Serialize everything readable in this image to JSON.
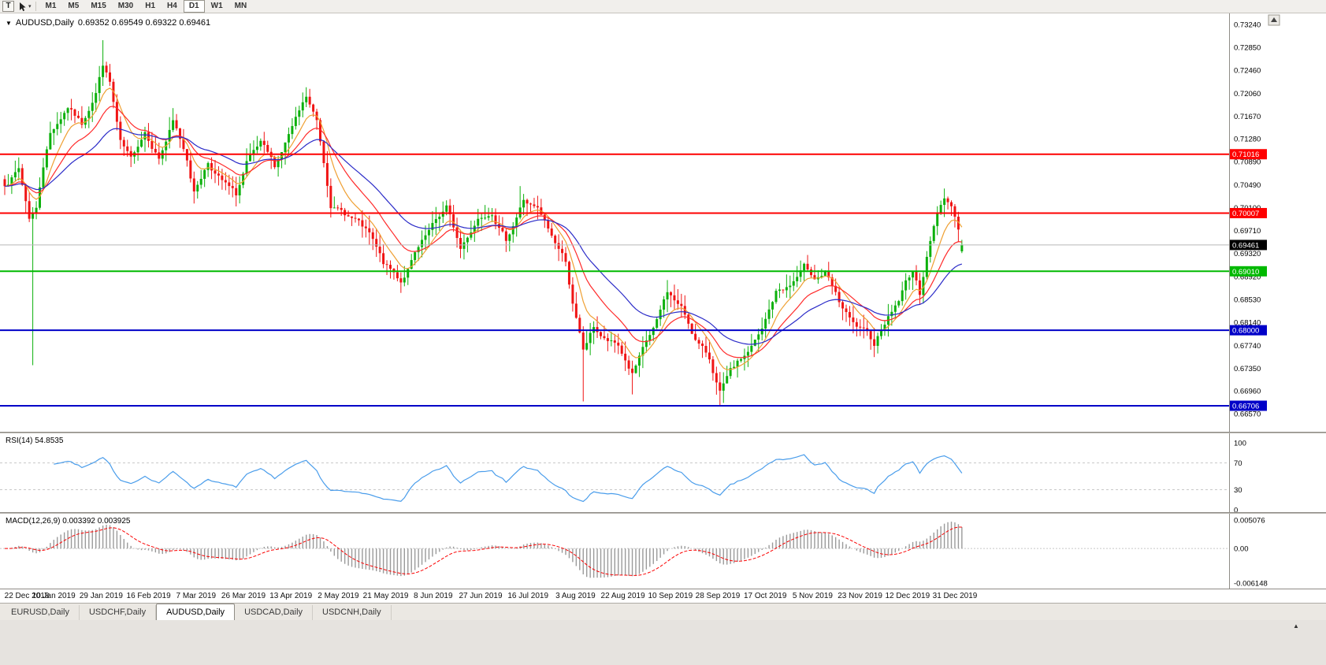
{
  "toolbar": {
    "t_button": "T",
    "cursor_tool": "cursor-select",
    "timeframes": [
      "M1",
      "M5",
      "M15",
      "M30",
      "H1",
      "H4",
      "D1",
      "W1",
      "MN"
    ],
    "active_timeframe": "D1"
  },
  "chart": {
    "symbol_title": "AUDUSD,Daily",
    "ohlc": "0.69352 0.69549 0.69322 0.69461",
    "y_axis_labels": [
      "0.73240",
      "0.72850",
      "0.72460",
      "0.72060",
      "0.71670",
      "0.71280",
      "0.70890",
      "0.70490",
      "0.70100",
      "0.69710",
      "0.69320",
      "0.68920",
      "0.68530",
      "0.68140",
      "0.67740",
      "0.67350",
      "0.66960",
      "0.66570"
    ],
    "price_lines": [
      {
        "value": 0.71016,
        "label": "0.71016",
        "color": "#FE0000",
        "type": "resistance"
      },
      {
        "value": 0.70007,
        "label": "0.70007",
        "color": "#FE0000",
        "type": "resistance"
      },
      {
        "value": 0.6901,
        "label": "0.69010",
        "color": "#00B900",
        "type": "support"
      },
      {
        "value": 0.68,
        "label": "0.68000",
        "color": "#0000C8",
        "type": "support"
      },
      {
        "value": 0.66706,
        "label": "0.66706",
        "color": "#0000C8",
        "type": "support"
      }
    ],
    "current_price": {
      "value": 0.69461,
      "label": "0.69461",
      "line_color": "#B8B8B8",
      "badge_color": "#000000"
    }
  },
  "rsi_panel": {
    "label": "RSI(14) 54.8535",
    "levels": [
      "100",
      "70",
      "30",
      "0"
    ],
    "level_values": [
      100,
      70,
      30,
      0
    ],
    "line_color": "#4A9DEB"
  },
  "macd_panel": {
    "label": "MACD(12,26,9) 0.003392 0.003925",
    "levels": [
      "0.005076",
      "0.00",
      "-0.006148"
    ],
    "level_values": [
      0.005076,
      0,
      -0.006148
    ],
    "hist_color": "#9A9A9A",
    "signal_color": "#FB0000"
  },
  "time_axis": [
    "22 Dec 2018",
    "10 Jan 2019",
    "29 Jan 2019",
    "16 Feb 2019",
    "7 Mar 2019",
    "26 Mar 2019",
    "13 Apr 2019",
    "2 May 2019",
    "21 May 2019",
    "8 Jun 2019",
    "27 Jun 2019",
    "16 Jul 2019",
    "3 Aug 2019",
    "22 Aug 2019",
    "10 Sep 2019",
    "28 Sep 2019",
    "17 Oct 2019",
    "5 Nov 2019",
    "23 Nov 2019",
    "12 Dec 2019",
    "31 Dec 2019"
  ],
  "tabs": {
    "items": [
      "EURUSD,Daily",
      "USDCHF,Daily",
      "AUDUSD,Daily",
      "USDCAD,Daily",
      "USDCNH,Daily"
    ],
    "active": "AUDUSD,Daily"
  },
  "chart_data": {
    "type": "candlestick",
    "symbol": "AUDUSD",
    "timeframe": "Daily",
    "title": "AUDUSD,Daily",
    "last_ohlc": {
      "open": 0.69352,
      "high": 0.69549,
      "low": 0.69322,
      "close": 0.69461
    },
    "y_range": [
      0.6626,
      0.73429
    ],
    "x_range": [
      "22 Dec 2018",
      "31 Dec 2019"
    ],
    "up_color": "#0CB00C",
    "down_color": "#F01414",
    "candles": {
      "count": 274,
      "seed": 7,
      "noise": 0.0012,
      "wick": 0.0022,
      "anchors": [
        [
          0,
          0.7052
        ],
        [
          4,
          0.7078
        ],
        [
          7,
          0.6995
        ],
        [
          9,
          0.701
        ],
        [
          11,
          0.7085
        ],
        [
          13,
          0.714
        ],
        [
          18,
          0.7188
        ],
        [
          22,
          0.7155
        ],
        [
          26,
          0.7215
        ],
        [
          28,
          0.7262
        ],
        [
          30,
          0.7228
        ],
        [
          33,
          0.712
        ],
        [
          36,
          0.7085
        ],
        [
          40,
          0.714
        ],
        [
          44,
          0.71
        ],
        [
          48,
          0.7158
        ],
        [
          52,
          0.7095
        ],
        [
          54,
          0.704
        ],
        [
          58,
          0.7092
        ],
        [
          62,
          0.7058
        ],
        [
          66,
          0.7028
        ],
        [
          69,
          0.7082
        ],
        [
          73,
          0.7108
        ],
        [
          77,
          0.7068
        ],
        [
          81,
          0.7128
        ],
        [
          86,
          0.7188
        ],
        [
          89,
          0.7148
        ],
        [
          93,
          0.7015
        ],
        [
          96,
          0.7002
        ],
        [
          100,
          0.6988
        ],
        [
          104,
          0.6958
        ],
        [
          108,
          0.6905
        ],
        [
          113,
          0.6878
        ],
        [
          117,
          0.6925
        ],
        [
          121,
          0.6958
        ],
        [
          126,
          0.7002
        ],
        [
          130,
          0.6932
        ],
        [
          135,
          0.6992
        ],
        [
          139,
          0.7012
        ],
        [
          143,
          0.6962
        ],
        [
          148,
          0.703
        ],
        [
          152,
          0.7008
        ],
        [
          156,
          0.6958
        ],
        [
          160,
          0.6918
        ],
        [
          162,
          0.6845
        ],
        [
          165,
          0.6762
        ],
        [
          168,
          0.6802
        ],
        [
          171,
          0.6782
        ],
        [
          175,
          0.6768
        ],
        [
          179,
          0.6722
        ],
        [
          183,
          0.6772
        ],
        [
          186,
          0.6806
        ],
        [
          189,
          0.6858
        ],
        [
          193,
          0.6832
        ],
        [
          197,
          0.6782
        ],
        [
          201,
          0.6748
        ],
        [
          204,
          0.6692
        ],
        [
          207,
          0.6722
        ],
        [
          211,
          0.6748
        ],
        [
          216,
          0.6792
        ],
        [
          220,
          0.6858
        ],
        [
          224,
          0.6872
        ],
        [
          228,
          0.6902
        ],
        [
          231,
          0.6888
        ],
        [
          234,
          0.6898
        ],
        [
          238,
          0.6842
        ],
        [
          242,
          0.6802
        ],
        [
          245,
          0.6788
        ],
        [
          248,
          0.6768
        ],
        [
          251,
          0.6812
        ],
        [
          255,
          0.6852
        ],
        [
          257,
          0.6882
        ],
        [
          259,
          0.6902
        ],
        [
          261,
          0.6862
        ],
        [
          263,
          0.6932
        ],
        [
          266,
          0.7002
        ],
        [
          268,
          0.7032
        ],
        [
          270,
          0.7018
        ],
        [
          272,
          0.698
        ],
        [
          273,
          0.69461
        ]
      ],
      "spikes": [
        {
          "i": 8,
          "low": 0.674
        },
        {
          "i": 28,
          "high": 0.7297
        },
        {
          "i": 86,
          "high": 0.7206
        },
        {
          "i": 113,
          "low": 0.6864
        },
        {
          "i": 147,
          "high": 0.7047
        },
        {
          "i": 165,
          "low": 0.6678
        },
        {
          "i": 179,
          "low": 0.669
        },
        {
          "i": 204,
          "low": 0.667
        },
        {
          "i": 229,
          "high": 0.6929
        },
        {
          "i": 248,
          "low": 0.6754
        },
        {
          "i": 268,
          "high": 0.7041
        }
      ]
    },
    "moving_averages": [
      {
        "period": 8,
        "type": "ema",
        "color": "#EFA033"
      },
      {
        "period": 17,
        "type": "ema",
        "color": "#FF2A2A"
      },
      {
        "period": 34,
        "type": "ema",
        "color": "#2B2BC8"
      }
    ],
    "rsi": {
      "period": 14,
      "last": 54.8535,
      "levels": [
        70,
        30
      ]
    },
    "macd": {
      "fast": 12,
      "slow": 26,
      "signal": 9,
      "last_macd": 0.003392,
      "last_signal": 0.003925,
      "range": [
        -0.006148,
        0.005076
      ]
    }
  }
}
